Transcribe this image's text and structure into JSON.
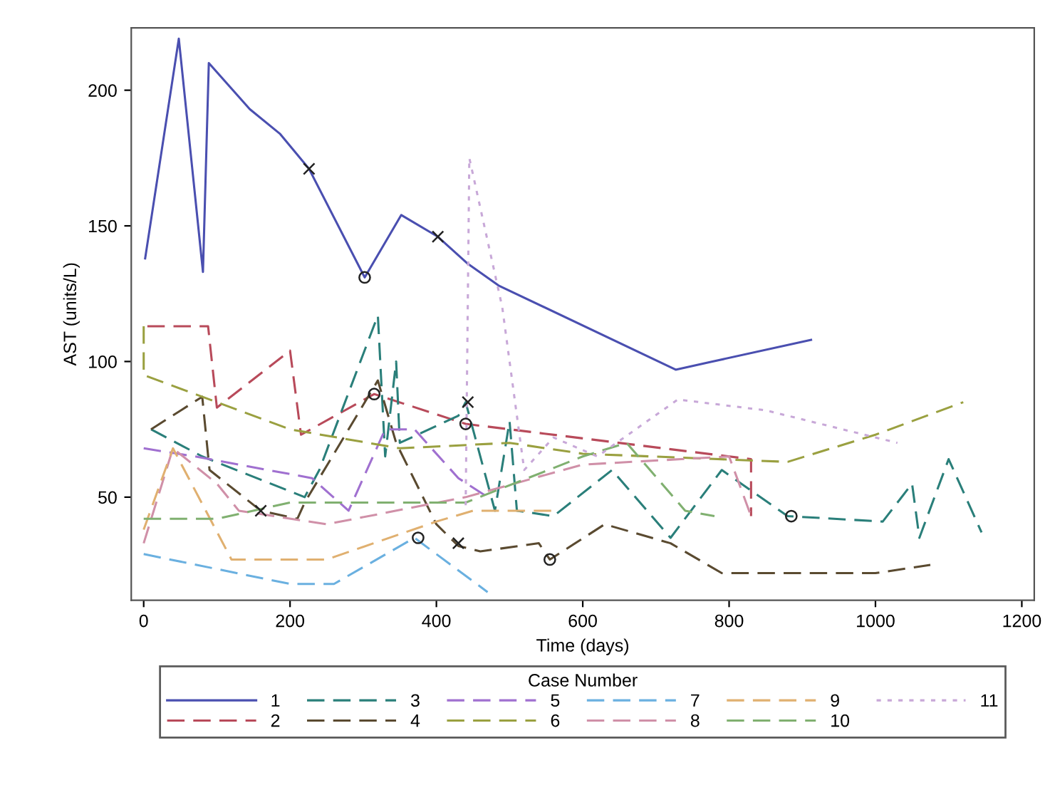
{
  "chart_data": {
    "type": "line",
    "xlabel": "Time (days)",
    "ylabel": "AST (units/L)",
    "legend_title": "Case Number",
    "legend": "bottom",
    "grid": false,
    "xlim": [
      -17,
      1217
    ],
    "ylim": [
      12,
      223
    ],
    "xticks": [
      0,
      200,
      400,
      600,
      800,
      1000,
      1200
    ],
    "yticks": [
      50,
      100,
      150,
      200
    ],
    "series": [
      {
        "name": "1",
        "color": "#4a4fb0",
        "line_style": "solid",
        "x": [
          2,
          48,
          81,
          89,
          145,
          186,
          226,
          302,
          352,
          402,
          443,
          485,
          727,
          912
        ],
        "values": [
          138,
          219,
          133,
          210,
          193,
          184,
          171,
          131,
          154,
          146,
          136,
          128,
          97,
          108
        ]
      },
      {
        "name": "2",
        "color": "#b84a5a",
        "line_style": "dashed",
        "x": [
          5,
          88,
          100,
          200,
          215,
          315,
          440,
          830,
          830
        ],
        "values": [
          113,
          113,
          83,
          104,
          73,
          88,
          77,
          64,
          43
        ]
      },
      {
        "name": "3",
        "color": "#2a7f7a",
        "line_style": "dashed",
        "x": [
          10,
          80,
          220,
          240,
          320,
          330,
          345,
          350,
          430,
          440,
          480,
          500,
          510,
          560,
          640,
          720,
          790,
          880,
          1010,
          1050,
          1060,
          1100,
          1145
        ],
        "values": [
          75,
          65,
          50,
          60,
          117,
          65,
          100,
          70,
          80,
          85,
          45,
          78,
          45,
          43,
          60,
          35,
          60,
          43,
          41,
          55,
          35,
          64,
          37
        ]
      },
      {
        "name": "4",
        "color": "#5a4a30",
        "line_style": "dashed",
        "x": [
          10,
          80,
          90,
          160,
          210,
          220,
          320,
          345,
          400,
          430,
          460,
          540,
          555,
          630,
          720,
          790,
          1000,
          1075
        ],
        "values": [
          75,
          87,
          60,
          45,
          42,
          48,
          93,
          70,
          40,
          32,
          30,
          33,
          27,
          40,
          33,
          22,
          22,
          25
        ]
      },
      {
        "name": "5",
        "color": "#a070d0",
        "line_style": "dashed",
        "x": [
          0,
          70,
          230,
          280,
          330,
          370,
          430,
          470
        ],
        "values": [
          68,
          65,
          57,
          45,
          75,
          75,
          57,
          50
        ]
      },
      {
        "name": "6",
        "color": "#9aa040",
        "line_style": "dashed",
        "x": [
          0,
          0,
          200,
          350,
          500,
          600,
          880,
          1000,
          1120
        ],
        "values": [
          113,
          95,
          75,
          68,
          70,
          66,
          63,
          73,
          85
        ]
      },
      {
        "name": "7",
        "color": "#6ab0e0",
        "line_style": "dashed",
        "x": [
          0,
          200,
          260,
          370,
          470
        ],
        "values": [
          29,
          18,
          18,
          35,
          15
        ]
      },
      {
        "name": "8",
        "color": "#d090a8",
        "line_style": "dashed",
        "x": [
          0,
          40,
          100,
          130,
          250,
          440,
          600,
          800,
          830
        ],
        "values": [
          33,
          68,
          55,
          45,
          40,
          50,
          62,
          65,
          43
        ]
      },
      {
        "name": "9",
        "color": "#e0b070",
        "line_style": "dashed",
        "x": [
          0,
          40,
          120,
          250,
          400,
          450,
          560
        ],
        "values": [
          38,
          68,
          27,
          27,
          41,
          45,
          45
        ]
      },
      {
        "name": "10",
        "color": "#80b070",
        "line_style": "dashed",
        "x": [
          0,
          100,
          200,
          300,
          440,
          600,
          660,
          740,
          780
        ],
        "values": [
          42,
          42,
          48,
          48,
          48,
          65,
          70,
          45,
          43
        ]
      },
      {
        "name": "11",
        "color": "#c8a8d8",
        "line_style": "dotted",
        "x": [
          440,
          445,
          490,
          520,
          560,
          620,
          730,
          850,
          1030
        ],
        "values": [
          47,
          175,
          120,
          60,
          72,
          65,
          86,
          82,
          70
        ]
      },
      {
        "type": "scatter",
        "color": "#222222",
        "marker": "cross",
        "x": [
          226,
          402,
          160,
          430,
          443
        ],
        "values": [
          171,
          146,
          45,
          33,
          85
        ]
      },
      {
        "type": "scatter",
        "color": "#222222",
        "marker": "circle",
        "x": [
          302,
          315,
          440,
          375,
          555,
          885
        ],
        "values": [
          131,
          88,
          77,
          35,
          27,
          43
        ]
      }
    ]
  }
}
